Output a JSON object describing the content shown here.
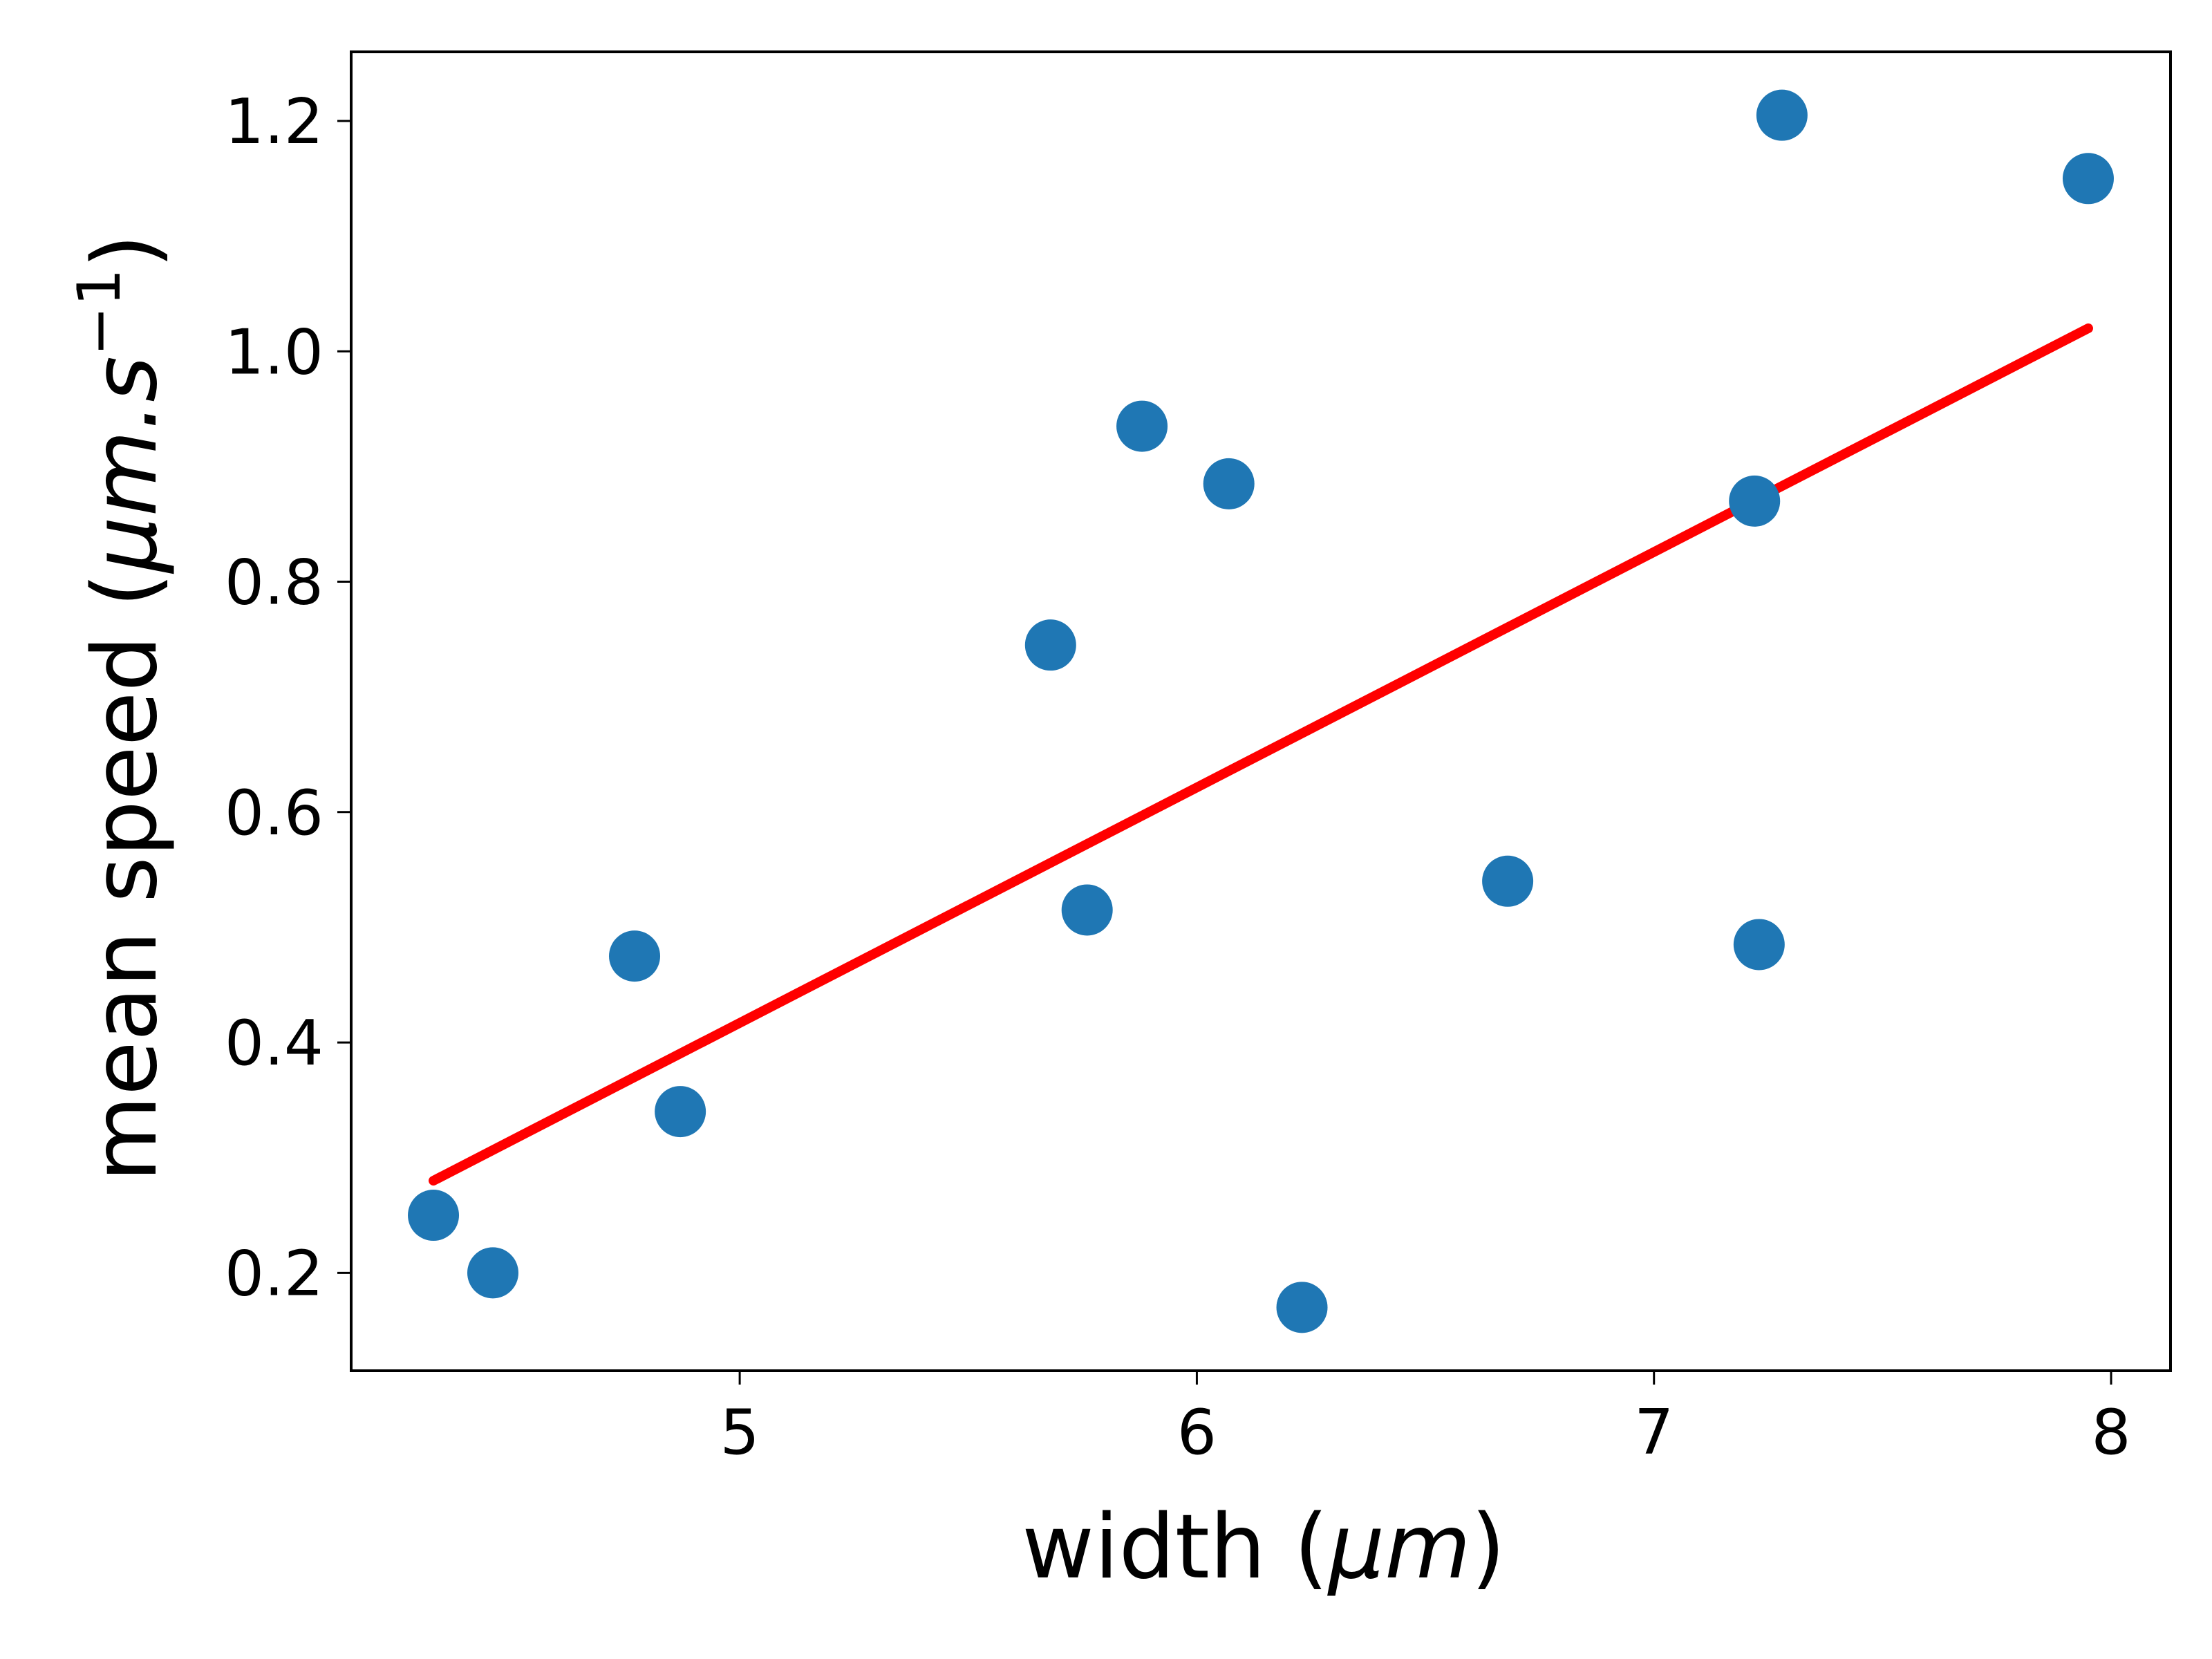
{
  "chart_data": {
    "type": "scatter",
    "xlabel": {
      "pre": "width (",
      "unit": "μm",
      "post": ")"
    },
    "ylabel": {
      "pre": "mean speed (",
      "unit": "μm.s",
      "sup": "−1",
      "post": ")"
    },
    "xlim": [
      4.15,
      8.13
    ],
    "ylim": [
      0.115,
      1.26
    ],
    "xticks": [
      5,
      6,
      7,
      8
    ],
    "xtick_labels": [
      "5",
      "6",
      "7",
      "8"
    ],
    "yticks": [
      0.2,
      0.4,
      0.6,
      0.8,
      1.0,
      1.2
    ],
    "ytick_labels": [
      "0.2",
      "0.4",
      "0.6",
      "0.8",
      "1.0",
      "1.2"
    ],
    "grid": false,
    "points": {
      "color": "#1f77b4",
      "x": [
        4.33,
        4.46,
        4.77,
        4.87,
        5.68,
        5.76,
        5.88,
        6.07,
        6.23,
        6.68,
        7.22,
        7.23,
        7.28,
        7.95
      ],
      "y": [
        0.25,
        0.2,
        0.475,
        0.34,
        0.745,
        0.515,
        0.935,
        0.885,
        0.17,
        0.54,
        0.87,
        0.485,
        1.205,
        1.15
      ]
    },
    "fit_line": {
      "color": "#ff0000",
      "x": [
        4.33,
        7.95
      ],
      "y": [
        0.28,
        1.02
      ]
    }
  }
}
